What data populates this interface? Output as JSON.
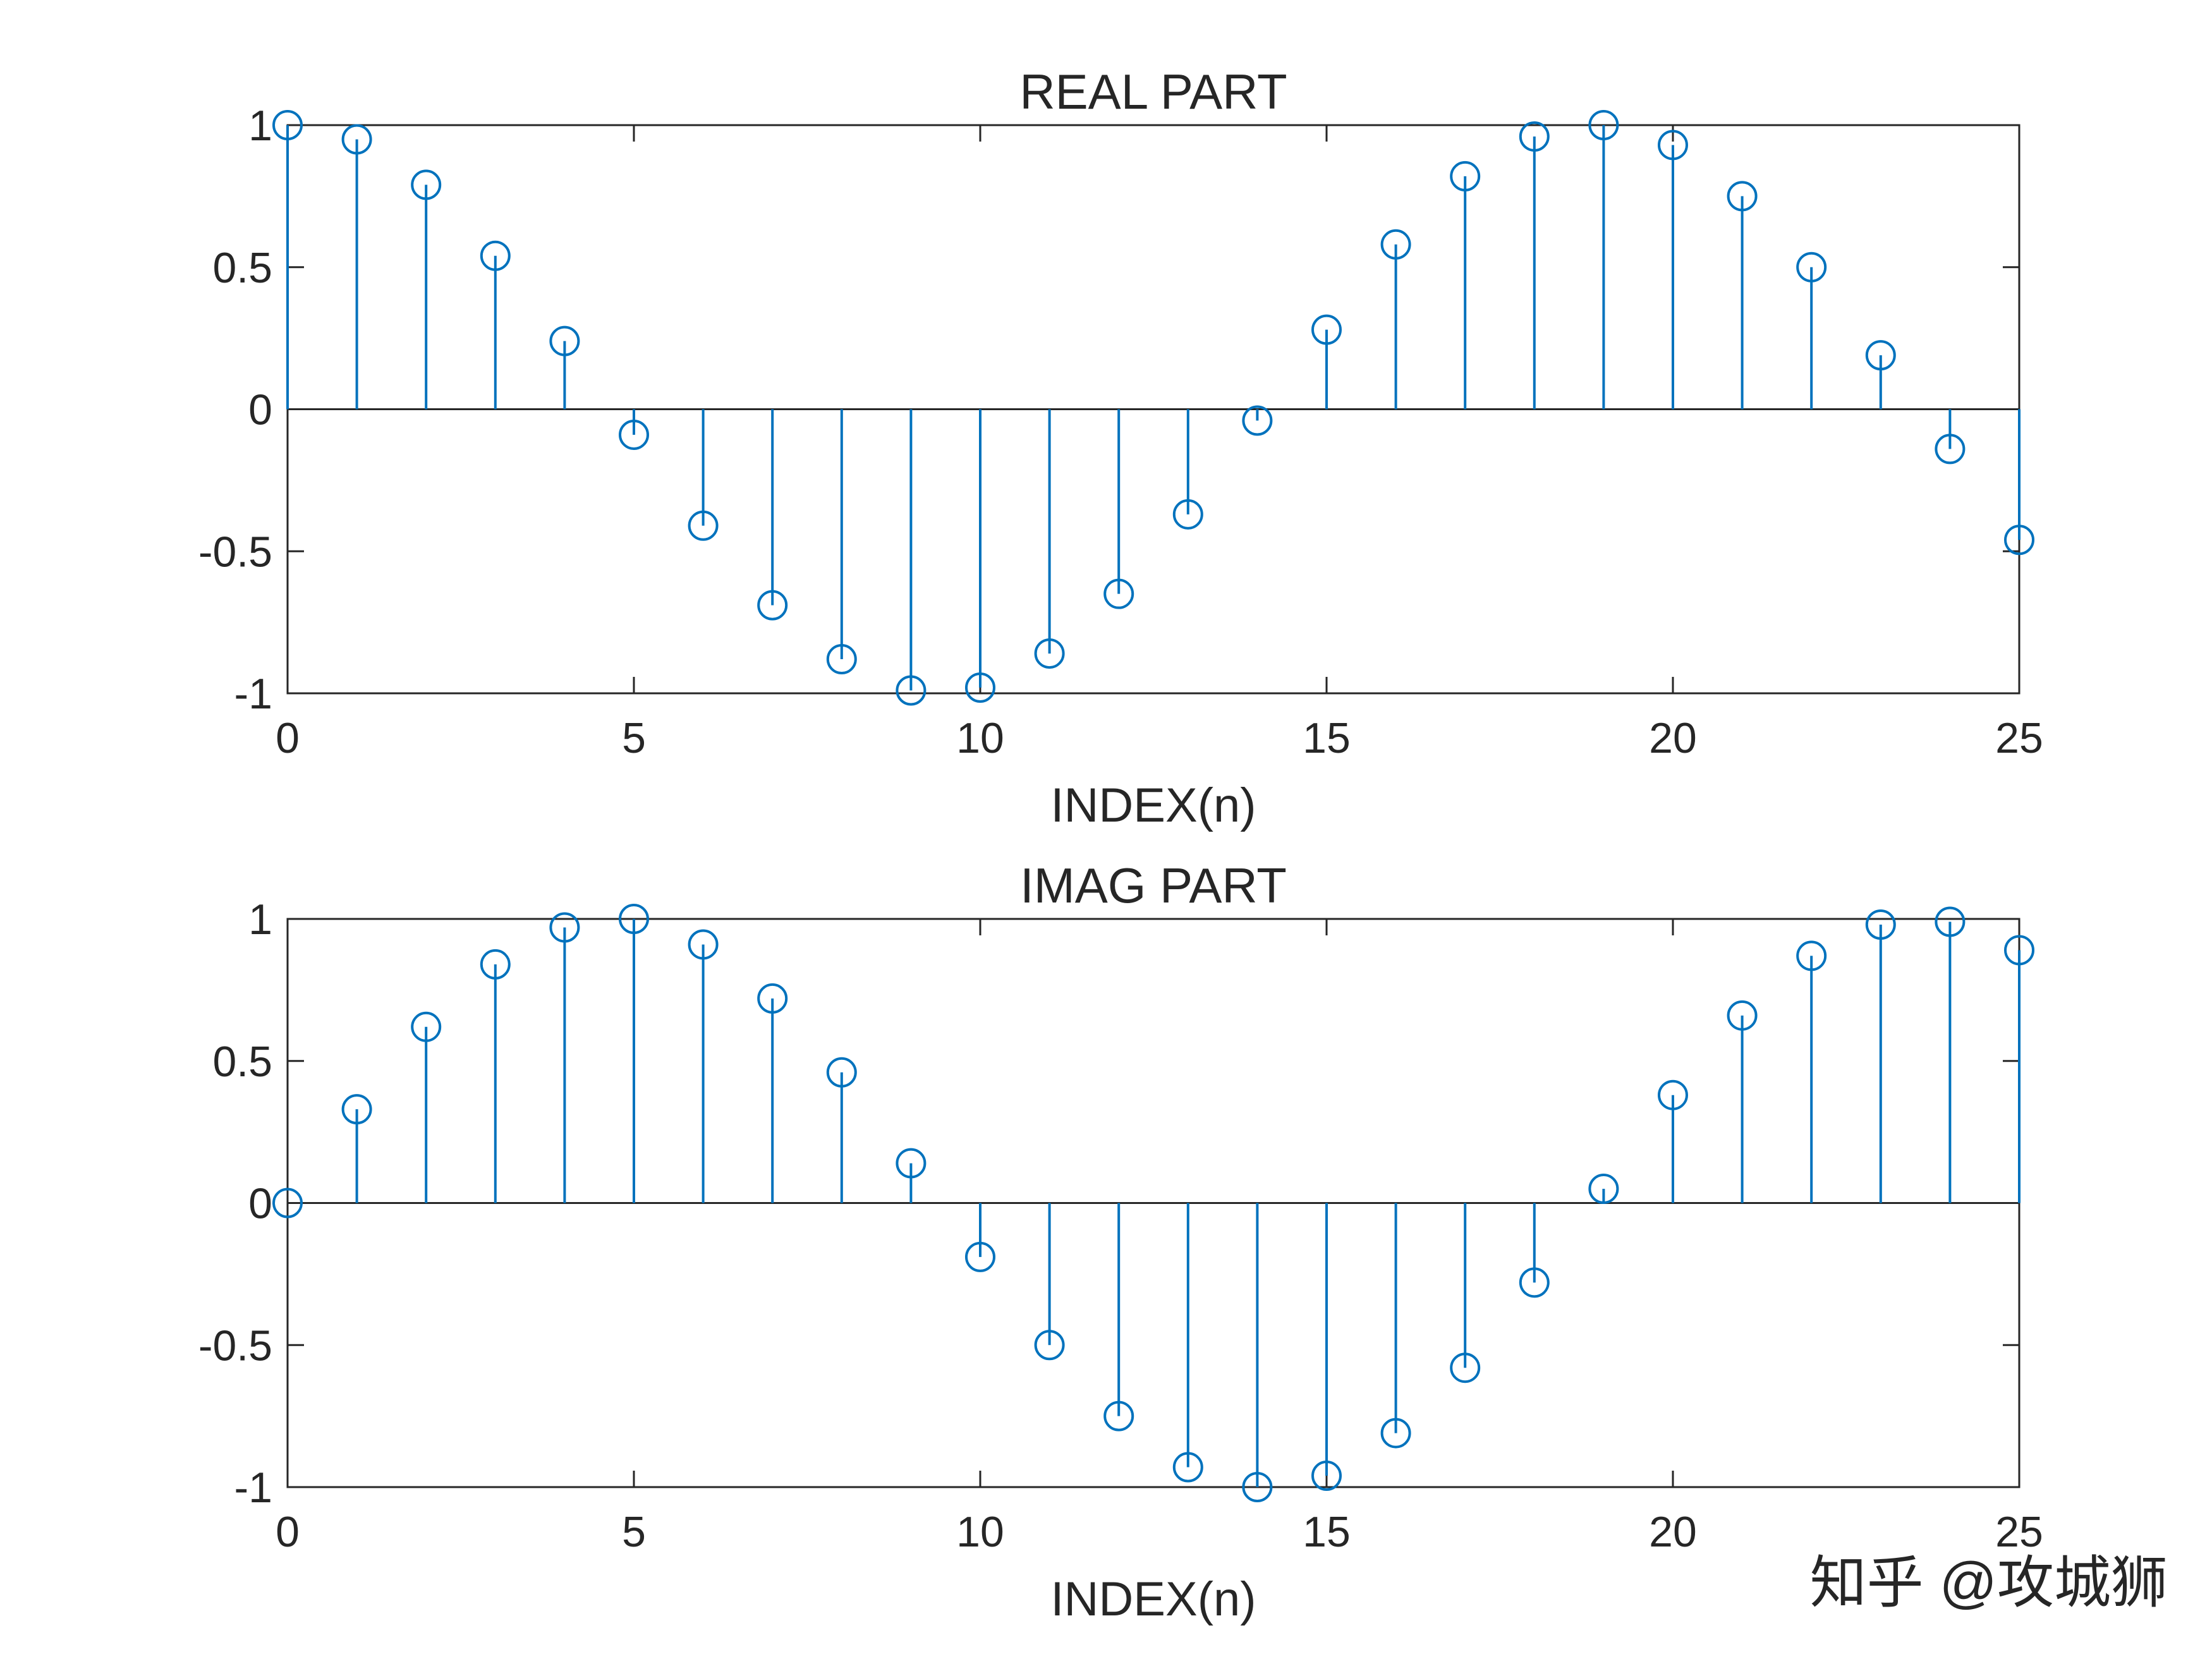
{
  "watermark": "知乎 @攻城狮",
  "colors": {
    "stem": "#0072BD",
    "axes": "#262626",
    "background": "#ffffff"
  },
  "chart_data": [
    {
      "type": "stem",
      "title": "REAL PART",
      "xlabel": "INDEX(n)",
      "ylabel": "",
      "xlim": [
        0,
        25
      ],
      "ylim": [
        -1,
        1
      ],
      "xticks": [
        0,
        5,
        10,
        15,
        20,
        25
      ],
      "yticks": [
        -1,
        -0.5,
        0,
        0.5,
        1
      ],
      "xtick_labels": [
        "0",
        "5",
        "10",
        "15",
        "20",
        "25"
      ],
      "ytick_labels": [
        "-1",
        "-0.5",
        "0",
        "0.5",
        "1"
      ],
      "grid": false,
      "marker": "circle",
      "x": [
        0,
        1,
        2,
        3,
        4,
        5,
        6,
        7,
        8,
        9,
        10,
        11,
        12,
        13,
        14,
        15,
        16,
        17,
        18,
        19,
        20,
        21,
        22,
        23,
        24,
        25
      ],
      "values": [
        1.0,
        0.95,
        0.79,
        0.54,
        0.24,
        -0.09,
        -0.41,
        -0.69,
        -0.88,
        -0.99,
        -0.98,
        -0.86,
        -0.65,
        -0.37,
        -0.04,
        0.28,
        0.58,
        0.82,
        0.96,
        1.0,
        0.93,
        0.75,
        0.5,
        0.19,
        -0.14,
        -0.46
      ]
    },
    {
      "type": "stem",
      "title": "IMAG PART",
      "xlabel": "INDEX(n)",
      "ylabel": "",
      "xlim": [
        0,
        25
      ],
      "ylim": [
        -1,
        1
      ],
      "xticks": [
        0,
        5,
        10,
        15,
        20,
        25
      ],
      "yticks": [
        -1,
        -0.5,
        0,
        0.5,
        1
      ],
      "xtick_labels": [
        "0",
        "5",
        "10",
        "15",
        "20",
        "25"
      ],
      "ytick_labels": [
        "-1",
        "-0.5",
        "0",
        "0.5",
        "1"
      ],
      "grid": false,
      "marker": "circle",
      "x": [
        0,
        1,
        2,
        3,
        4,
        5,
        6,
        7,
        8,
        9,
        10,
        11,
        12,
        13,
        14,
        15,
        16,
        17,
        18,
        19,
        20,
        21,
        22,
        23,
        24,
        25
      ],
      "values": [
        0.0,
        0.33,
        0.62,
        0.84,
        0.97,
        1.0,
        0.91,
        0.72,
        0.46,
        0.14,
        -0.19,
        -0.5,
        -0.75,
        -0.93,
        -1.0,
        -0.96,
        -0.81,
        -0.58,
        -0.28,
        0.05,
        0.38,
        0.66,
        0.87,
        0.98,
        0.99,
        0.89
      ]
    }
  ]
}
